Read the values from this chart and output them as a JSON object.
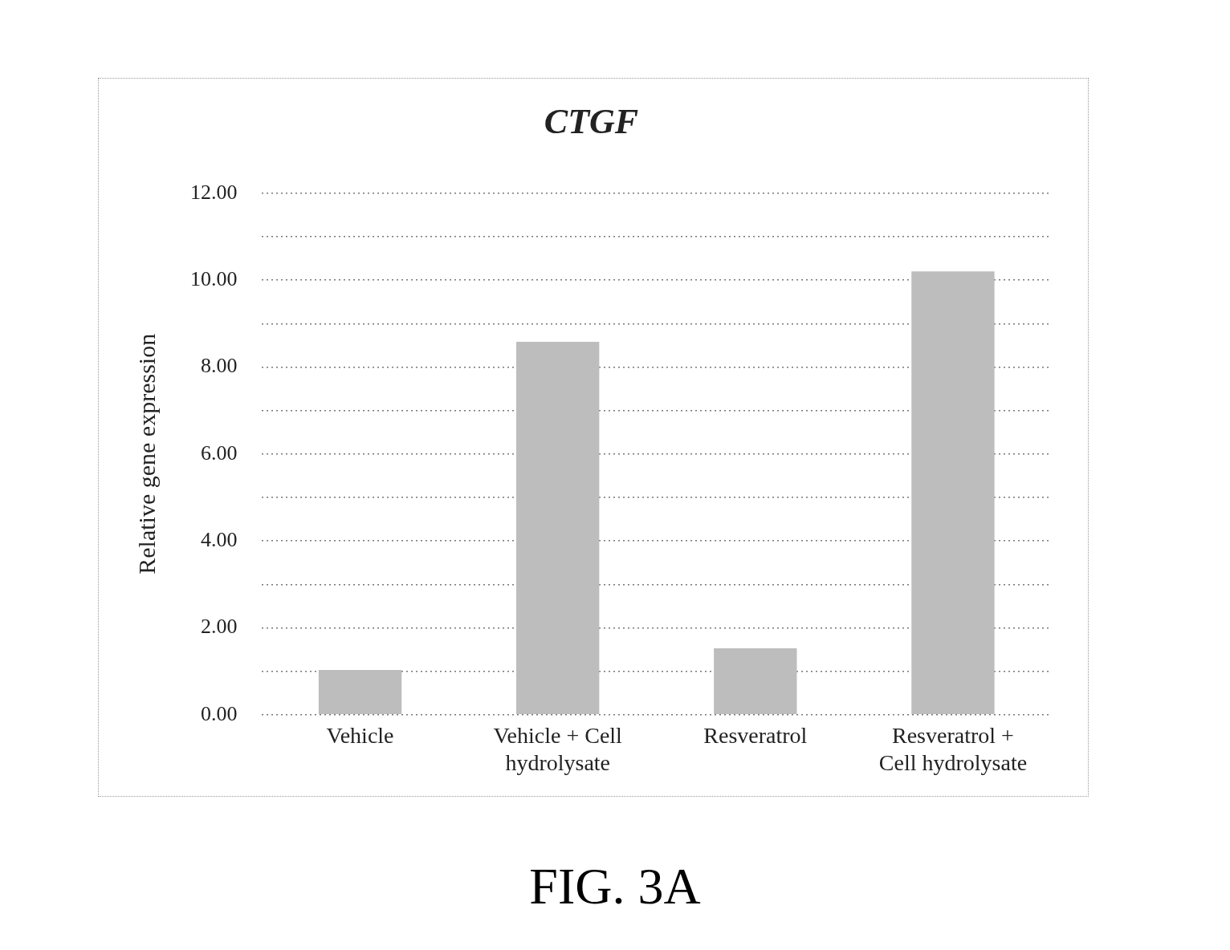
{
  "chart_data": {
    "type": "bar",
    "title": "CTGF",
    "ylabel": "Relative gene expression",
    "categories": [
      "Vehicle",
      "Vehicle + Cell hydrolysate",
      "Resveratrol",
      "Resveratrol + Cell hydrolysate"
    ],
    "values": [
      1.03,
      8.58,
      1.53,
      10.2
    ],
    "color": "#bdbdbd",
    "ylim": [
      0,
      12
    ],
    "yticks": [
      {
        "value": 0,
        "label": "0.00"
      },
      {
        "value": 1,
        "label": null
      },
      {
        "value": 2,
        "label": "2.00"
      },
      {
        "value": 3,
        "label": null
      },
      {
        "value": 4,
        "label": "4.00"
      },
      {
        "value": 5,
        "label": null
      },
      {
        "value": 6,
        "label": "6.00"
      },
      {
        "value": 7,
        "label": null
      },
      {
        "value": 8,
        "label": "8.00"
      },
      {
        "value": 9,
        "label": null
      },
      {
        "value": 10,
        "label": "10.00"
      },
      {
        "value": 11,
        "label": null
      },
      {
        "value": 12,
        "label": "12.00"
      }
    ],
    "grid": true,
    "annotations": [
      "FIG. 3A"
    ]
  }
}
